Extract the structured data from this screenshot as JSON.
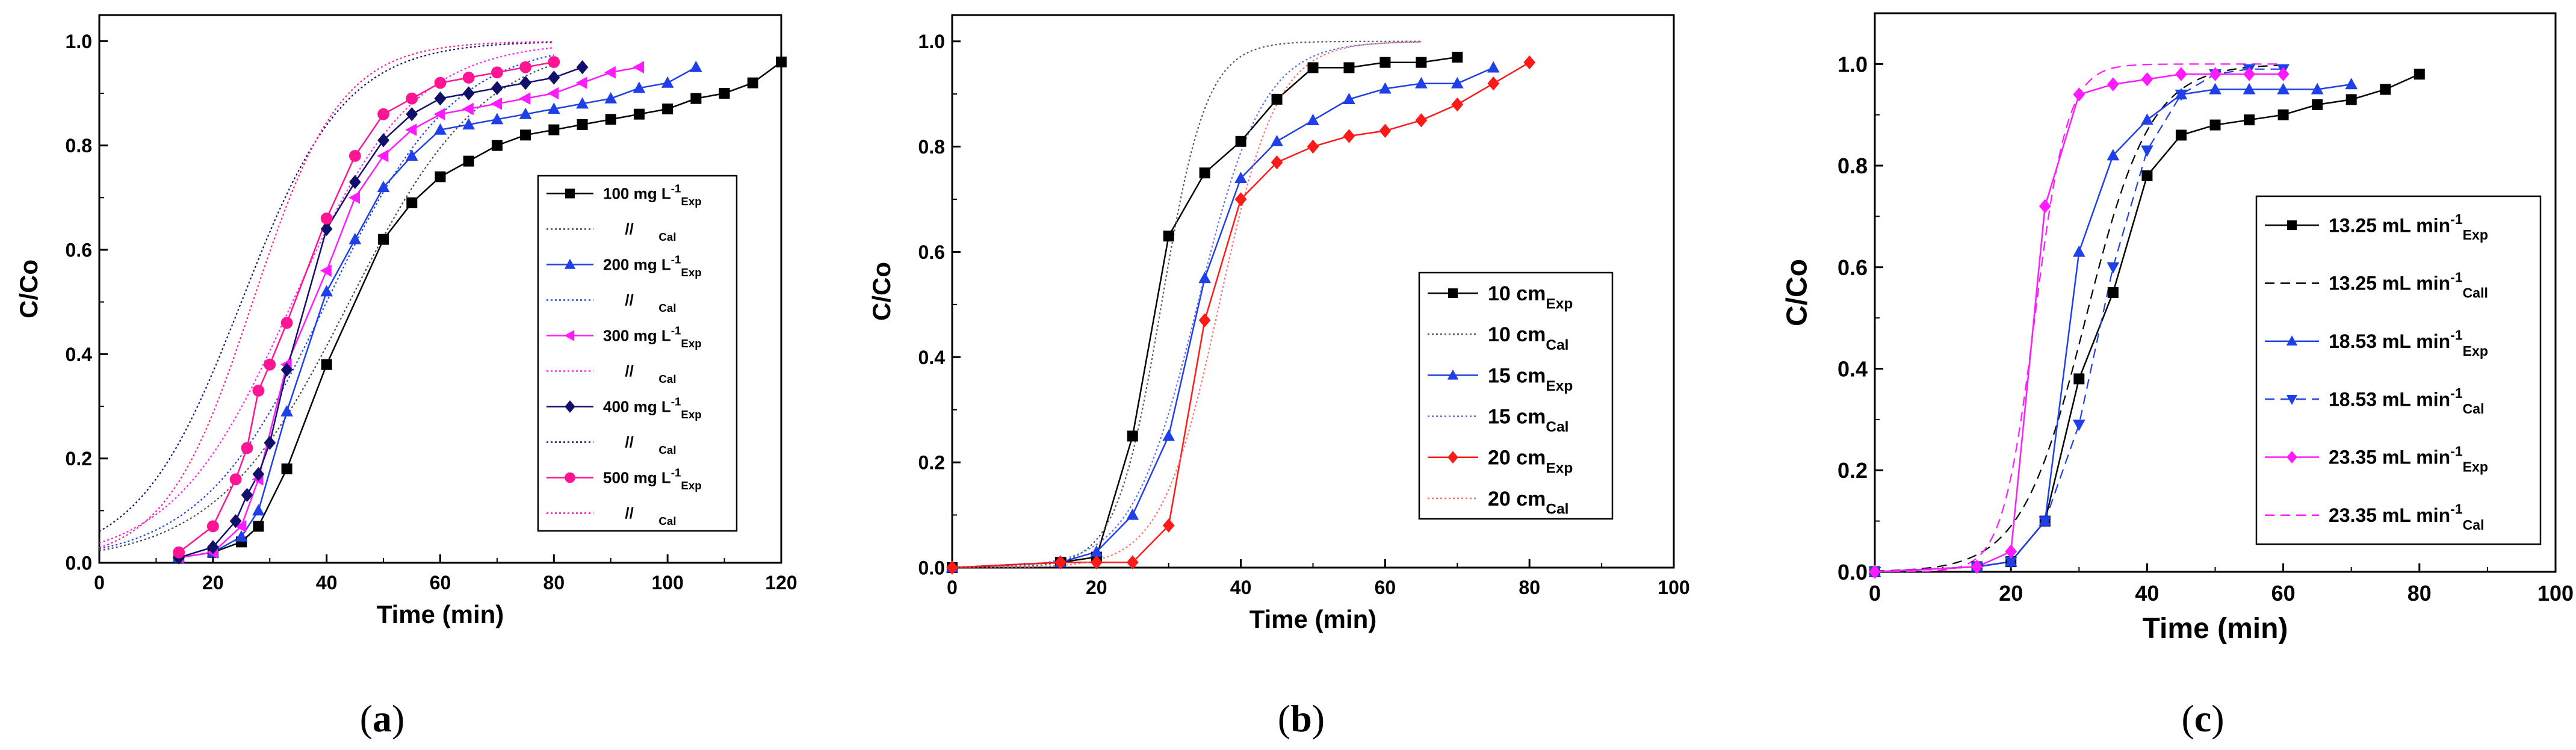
{
  "figure": {
    "panel_labels_note": "panel labels are inside each chart_data entry"
  },
  "chart_data": [
    {
      "type": "line",
      "panel_label": "(a)",
      "panel_label_parts": [
        "(",
        "a",
        ")"
      ],
      "xlabel": "Time (min)",
      "ylabel": "C/Co",
      "xlim": [
        0,
        120
      ],
      "ylim": [
        0,
        1.05
      ],
      "xticks": [
        0,
        20,
        40,
        60,
        80,
        100,
        120
      ],
      "yticks": [
        0.0,
        0.2,
        0.4,
        0.6,
        0.8,
        1.0
      ],
      "ytick_labels": [
        "0.0",
        "0.2",
        "0.4",
        "0.6",
        "0.8",
        "1.0"
      ],
      "legend_position": "right",
      "series": [
        {
          "name": "100 mg L-1 Exp",
          "main": "100 mg L",
          "sup": "-1",
          "sub": "Exp",
          "color": "#000000",
          "marker": "square",
          "style": "solid",
          "x": [
            14,
            20,
            25,
            28,
            33,
            40,
            50,
            55,
            60,
            65,
            70,
            75,
            80,
            85,
            90,
            95,
            100,
            105,
            110,
            115,
            120
          ],
          "y": [
            0.01,
            0.02,
            0.04,
            0.07,
            0.18,
            0.38,
            0.62,
            0.69,
            0.74,
            0.77,
            0.8,
            0.82,
            0.83,
            0.84,
            0.85,
            0.86,
            0.87,
            0.89,
            0.9,
            0.92,
            0.96
          ]
        },
        {
          "name": "100 // Cal",
          "main": "//",
          "sub": "Cal",
          "color": "#444444",
          "style": "dotted",
          "curve": {
            "mid": 44,
            "k": 0.085,
            "end": 80
          }
        },
        {
          "name": "200 mg L-1 Exp",
          "main": "200 mg L",
          "sup": "-1",
          "sub": "Exp",
          "color": "#1f3fe8",
          "marker": "triangle",
          "style": "solid",
          "x": [
            14,
            20,
            25,
            28,
            33,
            40,
            45,
            50,
            55,
            60,
            65,
            70,
            75,
            80,
            85,
            90,
            95,
            100,
            105
          ],
          "y": [
            0.01,
            0.02,
            0.05,
            0.1,
            0.29,
            0.52,
            0.62,
            0.72,
            0.78,
            0.83,
            0.84,
            0.85,
            0.86,
            0.87,
            0.88,
            0.89,
            0.91,
            0.92,
            0.95
          ]
        },
        {
          "name": "200 // Cal",
          "main": "//",
          "sub": "Cal",
          "color": "#1f3fe8",
          "style": "dotted",
          "curve": {
            "mid": 40,
            "k": 0.09,
            "end": 80
          }
        },
        {
          "name": "300 mg L-1 Exp",
          "main": "300 mg L",
          "sup": "-1",
          "sub": "Exp",
          "color": "#ff1aff",
          "marker": "triangle-left",
          "style": "solid",
          "x": [
            14,
            20,
            25,
            28,
            33,
            40,
            45,
            50,
            55,
            60,
            65,
            70,
            75,
            80,
            85,
            90,
            95
          ],
          "y": [
            0.01,
            0.02,
            0.07,
            0.16,
            0.38,
            0.56,
            0.7,
            0.78,
            0.83,
            0.86,
            0.87,
            0.88,
            0.89,
            0.9,
            0.92,
            0.94,
            0.95
          ]
        },
        {
          "name": "300 // Cal",
          "main": "//",
          "sub": "Cal",
          "color": "#ff1aff",
          "style": "dotted",
          "curve": {
            "mid": 34,
            "k": 0.095,
            "end": 80
          }
        },
        {
          "name": "400 mg L-1 Exp",
          "main": "400 mg L",
          "sup": "-1",
          "sub": "Exp",
          "color": "#10106b",
          "marker": "diamond",
          "style": "solid",
          "x": [
            14,
            20,
            24,
            26,
            28,
            30,
            33,
            40,
            45,
            50,
            55,
            60,
            65,
            70,
            75,
            80,
            85
          ],
          "y": [
            0.01,
            0.03,
            0.08,
            0.13,
            0.17,
            0.23,
            0.37,
            0.64,
            0.73,
            0.81,
            0.86,
            0.89,
            0.9,
            0.91,
            0.92,
            0.93,
            0.95
          ]
        },
        {
          "name": "400 // Cal",
          "main": "//",
          "sub": "Cal",
          "color": "#10106b",
          "style": "dotted",
          "curve": {
            "mid": 25,
            "k": 0.11,
            "end": 80
          }
        },
        {
          "name": "500 mg L-1 Exp",
          "main": "500 mg L",
          "sup": "-1",
          "sub": "Exp",
          "color": "#ff1493",
          "marker": "circle",
          "style": "solid",
          "x": [
            14,
            20,
            24,
            26,
            28,
            30,
            33,
            40,
            45,
            50,
            55,
            60,
            65,
            70,
            75,
            80
          ],
          "y": [
            0.02,
            0.07,
            0.16,
            0.22,
            0.33,
            0.38,
            0.46,
            0.66,
            0.78,
            0.86,
            0.89,
            0.92,
            0.93,
            0.94,
            0.95,
            0.96
          ]
        },
        {
          "name": "500 // Cal",
          "main": "//",
          "sub": "Cal",
          "color": "#ff1493",
          "style": "dotted",
          "curve": {
            "mid": 27,
            "k": 0.13,
            "end": 80
          }
        }
      ]
    },
    {
      "type": "line",
      "panel_label": "(b)",
      "panel_label_parts": [
        "(",
        "b",
        ")"
      ],
      "xlabel": "Time (min)",
      "ylabel": "C/Co",
      "xlim": [
        0,
        100
      ],
      "ylim": [
        0,
        1.05
      ],
      "xticks": [
        0,
        20,
        40,
        60,
        80,
        100
      ],
      "yticks": [
        0.0,
        0.2,
        0.4,
        0.6,
        0.8,
        1.0
      ],
      "ytick_labels": [
        "0.0",
        "0.2",
        "0.4",
        "0.6",
        "0.8",
        "1.0"
      ],
      "legend_position": "right",
      "series": [
        {
          "name": "10 cm Exp",
          "main": "10 cm",
          "sub": "Exp",
          "color": "#000000",
          "marker": "square",
          "style": "solid",
          "x": [
            0,
            15,
            20,
            25,
            30,
            35,
            40,
            45,
            50,
            55,
            60,
            65,
            70
          ],
          "y": [
            0,
            0.01,
            0.02,
            0.25,
            0.63,
            0.75,
            0.81,
            0.89,
            0.95,
            0.95,
            0.96,
            0.96,
            0.97
          ]
        },
        {
          "name": "10 cm Cal",
          "main": "10 cm",
          "sub": "Cal",
          "color": "#555555",
          "style": "dotted",
          "curve": {
            "mid": 29,
            "k": 0.32,
            "end": 65
          }
        },
        {
          "name": "15 cm Exp",
          "main": "15 cm",
          "sub": "Exp",
          "color": "#1f3fe8",
          "marker": "triangle",
          "style": "solid",
          "x": [
            0,
            15,
            20,
            25,
            30,
            35,
            40,
            45,
            50,
            55,
            60,
            65,
            70,
            75
          ],
          "y": [
            0,
            0.01,
            0.03,
            0.1,
            0.25,
            0.55,
            0.74,
            0.81,
            0.85,
            0.89,
            0.91,
            0.92,
            0.92,
            0.95
          ]
        },
        {
          "name": "15 cm Cal",
          "main": "15  cm",
          "sub": "Cal",
          "color": "#5a6ee8",
          "style": "dotted",
          "curve": {
            "mid": 34,
            "k": 0.22,
            "end": 65
          }
        },
        {
          "name": "20 cm Exp",
          "main": "20 cm",
          "sub": "Exp",
          "color": "#ff1a1a",
          "marker": "diamond",
          "style": "solid",
          "x": [
            0,
            15,
            20,
            25,
            30,
            35,
            40,
            45,
            50,
            55,
            60,
            65,
            70,
            75,
            80
          ],
          "y": [
            0,
            0.01,
            0.01,
            0.01,
            0.08,
            0.47,
            0.7,
            0.77,
            0.8,
            0.82,
            0.83,
            0.85,
            0.88,
            0.92,
            0.96
          ]
        },
        {
          "name": "20 cm Cal",
          "main": "20 cm",
          "sub": "Cal",
          "color": "#ff6a6a",
          "style": "dotted",
          "curve": {
            "mid": 37,
            "k": 0.25,
            "end": 65
          }
        }
      ]
    },
    {
      "type": "line",
      "panel_label": "(c)",
      "panel_label_parts": [
        "(",
        "c",
        ")"
      ],
      "xlabel": "Time (min)",
      "ylabel": "C/Co",
      "xlim": [
        0,
        100
      ],
      "ylim": [
        0,
        1.1
      ],
      "xticks": [
        0,
        20,
        40,
        60,
        80,
        100
      ],
      "yticks": [
        0.0,
        0.2,
        0.4,
        0.6,
        0.8,
        1.0
      ],
      "ytick_labels": [
        "0.0",
        "0.2",
        "0.4",
        "0.6",
        "0.8",
        "1.0"
      ],
      "legend_position": "right",
      "series": [
        {
          "name": "13.25 mL min-1 Exp",
          "main": "13.25 mL min",
          "sup": "-1",
          "sub": "Exp",
          "color": "#000000",
          "marker": "square",
          "style": "solid",
          "x": [
            0,
            15,
            20,
            25,
            30,
            35,
            40,
            45,
            50,
            55,
            60,
            65,
            70,
            75,
            80
          ],
          "y": [
            0,
            0.01,
            0.02,
            0.1,
            0.38,
            0.55,
            0.78,
            0.86,
            0.88,
            0.89,
            0.9,
            0.92,
            0.93,
            0.95,
            0.98
          ]
        },
        {
          "name": "13.25 mL min-1 Cal",
          "main": "13.25 mL min",
          "sup": "-1",
          "sub": "Cal",
          "tail": "l",
          "color": "#000000",
          "style": "dashed",
          "curve": {
            "mid": 31,
            "k": 0.21,
            "end": 60
          }
        },
        {
          "name": "18.53 mL min-1 Exp",
          "main": "18.53 mL min",
          "sup": "-1",
          "sub": "Exp",
          "color": "#1f3fe8",
          "marker": "triangle",
          "style": "solid",
          "x": [
            0,
            15,
            20,
            25,
            30,
            35,
            40,
            45,
            50,
            55,
            60,
            65,
            70
          ],
          "y": [
            0,
            0.01,
            0.02,
            0.1,
            0.63,
            0.82,
            0.89,
            0.94,
            0.95,
            0.95,
            0.95,
            0.95,
            0.96
          ]
        },
        {
          "name": "18.53 mL min-1 Cal",
          "main": "18.53 mL min",
          "sup": "-1",
          "sub": "Cal",
          "color": "#1f3fe8",
          "style": "dashed",
          "marker": "triangle-down",
          "x": [
            0,
            15,
            20,
            25,
            30,
            35,
            40,
            45,
            50,
            55,
            60
          ],
          "y": [
            0,
            0.01,
            0.02,
            0.1,
            0.29,
            0.6,
            0.83,
            0.94,
            0.98,
            0.99,
            0.99
          ]
        },
        {
          "name": "23.35 mL min-1 Exp",
          "main": "23.35 mL min",
          "sup": "-1",
          "sub": "Exp",
          "color": "#ff1aff",
          "marker": "diamond",
          "style": "solid",
          "x": [
            0,
            15,
            20,
            25,
            30,
            35,
            40,
            45,
            50,
            55,
            60
          ],
          "y": [
            0,
            0.01,
            0.04,
            0.72,
            0.94,
            0.96,
            0.97,
            0.98,
            0.98,
            0.98,
            0.98
          ]
        },
        {
          "name": "23.35 mL min-1 Cal",
          "main": "23.35 mL min",
          "sup": "-1",
          "sub": "Cal",
          "color": "#ff1aff",
          "style": "dashed",
          "curve": {
            "mid": 23.5,
            "k": 0.42,
            "end": 60
          }
        }
      ]
    }
  ]
}
